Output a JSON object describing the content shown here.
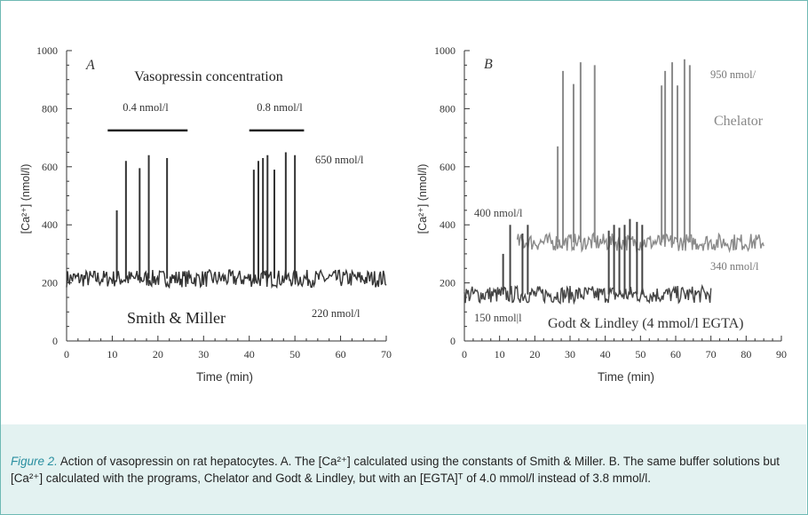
{
  "chart_data": [
    {
      "type": "line",
      "panel_label": "A",
      "xlabel": "Time (min)",
      "ylabel": "[Ca²⁺] (nmol/l)",
      "xlim": [
        0,
        70
      ],
      "ylim": [
        0,
        1000
      ],
      "xticks": [
        0,
        10,
        20,
        30,
        40,
        50,
        60,
        70
      ],
      "yticks": [
        0,
        200,
        400,
        600,
        800,
        1000
      ],
      "colors": {
        "trace": "#333333",
        "bars": "#222222"
      },
      "annotations": {
        "title": "Vasopressin concentration",
        "conc1": "0.4 nmol/l",
        "conc2": "0.8 nmol/l",
        "peak": "650 nmol/l",
        "baseline": "220 nmol/l",
        "method": "Smith & Miller"
      },
      "stimulation_bars": [
        {
          "label": "0.4 nmol/l",
          "x_start": 9,
          "x_end": 26.5,
          "y": 725
        },
        {
          "label": "0.8 nmol/l",
          "x_start": 40,
          "x_end": 52,
          "y": 725
        }
      ],
      "series": [
        {
          "baseline": 215,
          "x_range": [
            0,
            70
          ]
        }
      ],
      "spikes": [
        {
          "x": 11,
          "y": 450
        },
        {
          "x": 13,
          "y": 620
        },
        {
          "x": 16,
          "y": 595
        },
        {
          "x": 18,
          "y": 640
        },
        {
          "x": 22,
          "y": 630
        },
        {
          "x": 41,
          "y": 590
        },
        {
          "x": 42,
          "y": 620
        },
        {
          "x": 43,
          "y": 630
        },
        {
          "x": 44,
          "y": 640
        },
        {
          "x": 45.5,
          "y": 590
        },
        {
          "x": 48,
          "y": 650
        },
        {
          "x": 50,
          "y": 640
        }
      ]
    },
    {
      "type": "line",
      "panel_label": "B",
      "xlabel": "Time (min)",
      "ylabel": "[Ca²⁺] (nmol/l)",
      "xlim": [
        0,
        90
      ],
      "ylim": [
        0,
        1000
      ],
      "xticks": [
        0,
        10,
        20,
        30,
        40,
        50,
        60,
        70,
        80,
        90
      ],
      "yticks": [
        0,
        200,
        400,
        600,
        800,
        1000
      ],
      "colors": {
        "chelator": "#8a8a8a",
        "godt": "#444444"
      },
      "annotations": {
        "peak": "950 nmol/",
        "chelator": "Chelator",
        "baseline_chelator": "340 nmol/l",
        "peak_godt": "400 nmol/l",
        "baseline_godt": "150 nmol|l",
        "godt": "Godt & Lindley (4 mmol/l EGTA)"
      },
      "series": [
        {
          "baseline": 340,
          "x_range": [
            15,
            85
          ]
        },
        {
          "baseline": 160,
          "x_range": [
            0,
            70
          ]
        }
      ],
      "spikes": [
        {
          "series": 1,
          "x": 11,
          "y": 300
        },
        {
          "series": 1,
          "x": 13,
          "y": 400
        },
        {
          "series": 1,
          "x": 16.5,
          "y": 370
        },
        {
          "series": 1,
          "x": 18,
          "y": 400
        },
        {
          "series": 1,
          "x": 41,
          "y": 380
        },
        {
          "series": 1,
          "x": 42.5,
          "y": 400
        },
        {
          "series": 1,
          "x": 44,
          "y": 390
        },
        {
          "series": 1,
          "x": 45.5,
          "y": 400
        },
        {
          "series": 1,
          "x": 47,
          "y": 420
        },
        {
          "series": 1,
          "x": 49,
          "y": 410
        },
        {
          "series": 1,
          "x": 50.5,
          "y": 400
        },
        {
          "series": 0,
          "x": 26.5,
          "y": 670
        },
        {
          "series": 0,
          "x": 28,
          "y": 930
        },
        {
          "series": 0,
          "x": 31,
          "y": 885
        },
        {
          "series": 0,
          "x": 33,
          "y": 960
        },
        {
          "series": 0,
          "x": 37,
          "y": 950
        },
        {
          "series": 0,
          "x": 56,
          "y": 880
        },
        {
          "series": 0,
          "x": 57,
          "y": 930
        },
        {
          "series": 0,
          "x": 59,
          "y": 960
        },
        {
          "series": 0,
          "x": 60.5,
          "y": 880
        },
        {
          "series": 0,
          "x": 62.5,
          "y": 970
        },
        {
          "series": 0,
          "x": 64,
          "y": 950
        }
      ]
    }
  ],
  "caption": {
    "label": "Figure 2.",
    "text": " Action of vasopressin on rat hepatocytes. A. The [Ca²⁺] calculated using the constants of Smith & Miller. B. The same buffer solutions but [Ca²⁺] calculated with the programs, Chelator and Godt & Lindley, but with an [EGTA]ᵀ of 4.0 mmol/l instead of 3.8 mmol/l."
  }
}
